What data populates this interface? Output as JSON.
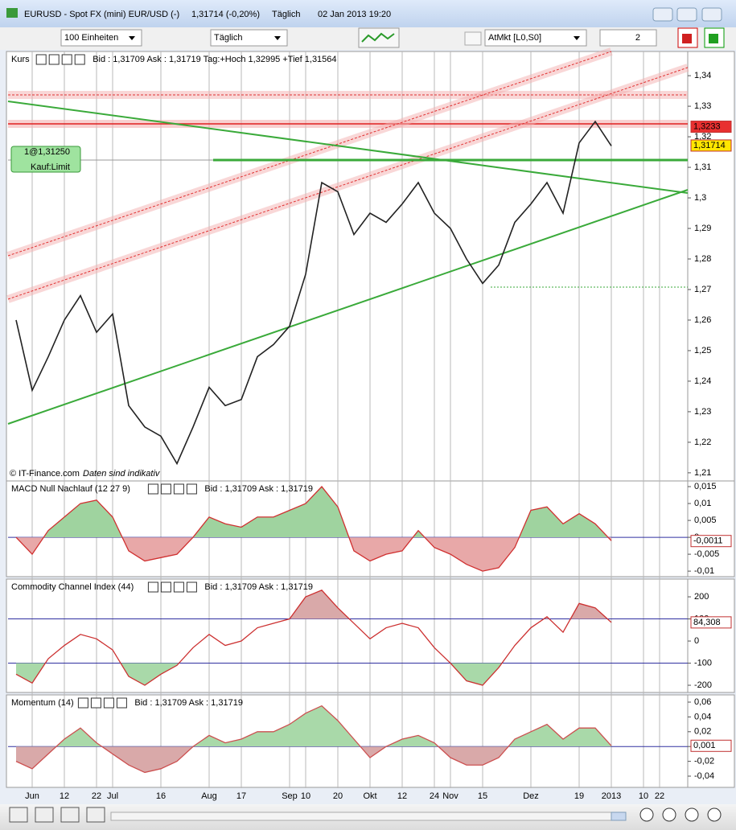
{
  "window": {
    "title": "EURUSD - Spot FX (mini) EUR/USD (-)",
    "quote": "1,31714 (-0,20%)",
    "interval": "Täglich",
    "timestamp": "02 Jan 2013 19:20"
  },
  "toolbar": {
    "units": "100 Einheiten",
    "period": "Täglich",
    "order_type": "AtMkt [L0,S0]",
    "quantity": "2"
  },
  "order": {
    "label": "1@1,31250",
    "status": "Kauf:Limit"
  },
  "copyright": "© IT-Finance.com",
  "disclaimer": "Daten sind indikativ",
  "chart_data": [
    {
      "type": "line",
      "title": "Kurs",
      "subtitle": "Bid : 1,31709 Ask : 1,31719 Tag:+Hoch 1,32995 +Tief 1,31564",
      "color": "#222222",
      "values": [
        1.26,
        1.237,
        1.248,
        1.26,
        1.268,
        1.256,
        1.262,
        1.232,
        1.225,
        1.222,
        1.213,
        1.225,
        1.238,
        1.232,
        1.234,
        1.248,
        1.252,
        1.258,
        1.275,
        1.305,
        1.302,
        1.288,
        1.295,
        1.292,
        1.298,
        1.305,
        1.295,
        1.29,
        1.28,
        1.272,
        1.278,
        1.292,
        1.298,
        1.305,
        1.295,
        1.318,
        1.325,
        1.317,
        null,
        null,
        null,
        null
      ],
      "ylim": [
        1.2076,
        1.3474
      ],
      "yticks": [
        {
          "value": 1.34,
          "label": "1,34"
        },
        {
          "value": 1.33,
          "label": "1,33"
        },
        {
          "value": 1.32,
          "label": "1,32"
        },
        {
          "value": 1.31,
          "label": "1,31"
        },
        {
          "value": 1.3,
          "label": "1,3"
        },
        {
          "value": 1.29,
          "label": "1,29"
        },
        {
          "value": 1.28,
          "label": "1,28"
        },
        {
          "value": 1.27,
          "label": "1,27"
        },
        {
          "value": 1.26,
          "label": "1,26"
        },
        {
          "value": 1.25,
          "label": "1,25"
        },
        {
          "value": 1.24,
          "label": "1,24"
        },
        {
          "value": 1.23,
          "label": "1,23"
        },
        {
          "value": 1.22,
          "label": "1,22"
        },
        {
          "value": 1.21,
          "label": "1,21"
        }
      ],
      "markers": [
        {
          "value": 1.3233,
          "label": "1,3233",
          "color": "#e83030"
        },
        {
          "value": 1.31714,
          "label": "1,31714",
          "color": "#ffe600"
        }
      ]
    },
    {
      "type": "line",
      "title": "MACD Null Nachlauf (12 27 9)",
      "subtitle": "Bid : 1,31709 Ask : 1,31719",
      "color": "#d03030",
      "values": [
        0.0,
        -0.005,
        0.002,
        0.006,
        0.01,
        0.011,
        0.006,
        -0.004,
        -0.007,
        -0.006,
        -0.005,
        0.0,
        0.006,
        0.004,
        0.003,
        0.006,
        0.006,
        0.008,
        0.01,
        0.015,
        0.009,
        -0.004,
        -0.007,
        -0.005,
        -0.004,
        0.002,
        -0.003,
        -0.005,
        -0.008,
        -0.01,
        -0.009,
        -0.003,
        0.008,
        0.009,
        0.004,
        0.007,
        0.004,
        -0.001,
        null,
        null,
        null,
        null
      ],
      "ylim": [
        -0.0114,
        0.0162
      ],
      "yticks": [
        {
          "value": 0.015,
          "label": "0,015"
        },
        {
          "value": 0.01,
          "label": "0,01"
        },
        {
          "value": 0.005,
          "label": "0,005"
        },
        0,
        {
          "value": -0.005,
          "label": "-0,005"
        },
        {
          "value": -0.01,
          "label": "-0,01"
        }
      ],
      "hlines": [
        0
      ],
      "fill": {
        "above": "#9fd39f",
        "below": "#e8a8a8"
      },
      "markers": [
        {
          "value": -0.0011,
          "label": "-0,0011",
          "color": "#ffffff"
        }
      ]
    },
    {
      "type": "line",
      "title": "Commodity Channel Index (44)",
      "subtitle": "Bid : 1,31709 Ask : 1,31719",
      "color": "#cc3030",
      "values": [
        -150,
        -190,
        -80,
        -20,
        30,
        10,
        -40,
        -160,
        -200,
        -150,
        -110,
        -30,
        30,
        -20,
        0,
        60,
        80,
        100,
        200,
        230,
        150,
        80,
        10,
        60,
        80,
        60,
        -30,
        -100,
        -180,
        -200,
        -120,
        -20,
        60,
        110,
        40,
        170,
        150,
        84.308,
        null,
        null,
        null,
        null
      ],
      "ylim": [
        -229,
        273
      ],
      "yticks": [
        200,
        100,
        0,
        -100,
        -200
      ],
      "hlines": [
        100,
        -100
      ],
      "fill": {
        "above": "#d9a9a9",
        "below": "#a9d9a9"
      },
      "markers": [
        {
          "value": 84.308,
          "label": "84,308",
          "color": "#ffffff"
        }
      ]
    },
    {
      "type": "line",
      "title": "Momentum (14)",
      "subtitle": "Bid : 1,31709 Ask : 1,31719",
      "color": "#cc5050",
      "categories": [
        null,
        "Jun",
        null,
        "12",
        null,
        "22",
        "Jul",
        null,
        null,
        "16",
        null,
        null,
        "Aug",
        null,
        "17",
        null,
        null,
        "Sep",
        "10",
        null,
        "20",
        null,
        "Okt",
        null,
        "12",
        null,
        "24",
        "Nov",
        null,
        "15",
        null,
        null,
        "Dez",
        null,
        null,
        "19",
        null,
        "2013",
        null,
        "10",
        "22",
        null
      ],
      "values": [
        -0.02,
        -0.03,
        -0.01,
        0.01,
        0.025,
        0.005,
        -0.01,
        -0.025,
        -0.035,
        -0.03,
        -0.02,
        0.0,
        0.015,
        0.005,
        0.01,
        0.02,
        0.02,
        0.03,
        0.045,
        0.055,
        0.035,
        0.01,
        -0.015,
        0.0,
        0.01,
        0.015,
        0.005,
        -0.015,
        -0.025,
        -0.025,
        -0.015,
        0.01,
        0.02,
        0.03,
        0.01,
        0.025,
        0.025,
        0.001,
        null,
        null,
        null,
        null
      ],
      "ylim": [
        -0.0541,
        0.0676
      ],
      "yticks": [
        {
          "value": 0.06,
          "label": "0,06"
        },
        {
          "value": 0.04,
          "label": "0,04"
        },
        {
          "value": 0.02,
          "label": "0,02"
        },
        0,
        {
          "value": -0.02,
          "label": "-0,02"
        },
        {
          "value": -0.04,
          "label": "-0,04"
        }
      ],
      "hlines": [
        0
      ],
      "fill": {
        "above": "#a9d9a9",
        "below": "#d9a9a9"
      },
      "markers": [
        {
          "value": 0.001,
          "label": "0,001",
          "color": "#ffffff"
        }
      ]
    }
  ]
}
